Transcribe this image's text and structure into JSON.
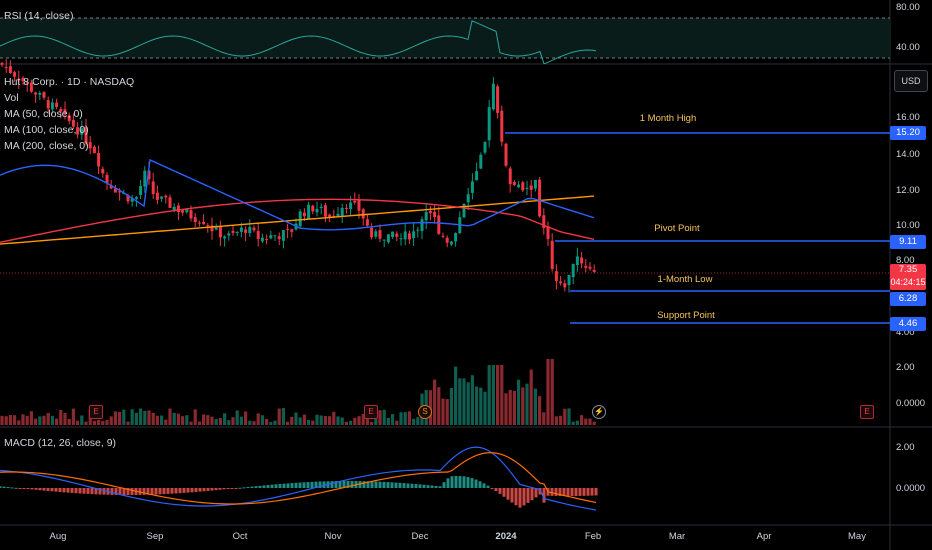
{
  "rsi": {
    "title": "RSI (14, close)",
    "axis": [
      "80.00",
      "40.00"
    ]
  },
  "main": {
    "title": "Hut 8 Corp. · 1D · NASDAQ",
    "indicators": [
      "Vol",
      "MA (50, close, 0)",
      "MA (100, close, 0)",
      "MA (200, close, 0)"
    ],
    "currency": "USD",
    "axis": [
      "16.00",
      "14.00",
      "12.00",
      "10.00",
      "8.00",
      "4.00"
    ],
    "vol_axis": [
      "2.00",
      "0.0000"
    ]
  },
  "levels": [
    {
      "label": "1 Month High",
      "value": "15.20",
      "color": "#2962ff"
    },
    {
      "label": "Pivot Point",
      "value": "9.11",
      "color": "#2962ff"
    },
    {
      "label": "1-Month Low",
      "value": "6.28",
      "color": "#2962ff"
    },
    {
      "label": "Support Point",
      "value": "4.46",
      "color": "#2962ff"
    }
  ],
  "last_price": {
    "value": "7.35",
    "countdown": "04:24:15",
    "color": "#f23645"
  },
  "macd": {
    "title": "MACD (12, 26, close, 9)",
    "axis": [
      "2.00",
      "0.0000"
    ]
  },
  "badges": {
    "e": "E",
    "s": "S",
    "flash": "⚡"
  },
  "time_axis": [
    {
      "label": "Aug",
      "bold": false
    },
    {
      "label": "Sep",
      "bold": false
    },
    {
      "label": "Oct",
      "bold": false
    },
    {
      "label": "Nov",
      "bold": false
    },
    {
      "label": "Dec",
      "bold": false
    },
    {
      "label": "2024",
      "bold": true
    },
    {
      "label": "Feb",
      "bold": false
    },
    {
      "label": "Mar",
      "bold": false
    },
    {
      "label": "Apr",
      "bold": false
    },
    {
      "label": "May",
      "bold": false
    }
  ],
  "colors": {
    "up": "#089981",
    "down": "#f23645",
    "ma50": "#2962ff",
    "ma100": "#f23645",
    "ma200": "#ff9800",
    "rsi": "#26a69a",
    "macd": "#2962ff",
    "signal": "#ff6d00"
  }
}
